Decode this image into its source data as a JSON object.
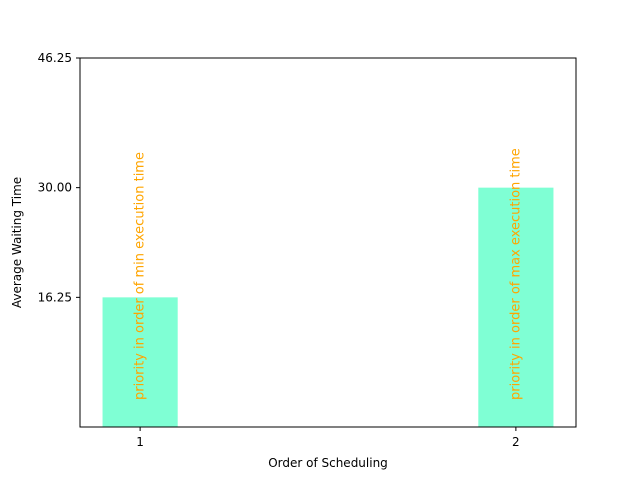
{
  "chart_data": {
    "type": "bar",
    "title": "",
    "xlabel": "Order of Scheduling",
    "ylabel": "Average Waiting Time",
    "categories": [
      "1",
      "2"
    ],
    "x": [
      1,
      2
    ],
    "values": [
      16.25,
      30.0
    ],
    "bar_labels": [
      "priority in order of min execution time",
      "priority in order of max execution time"
    ],
    "yticks": [
      16.25,
      30.0,
      46.25
    ],
    "ytick_labels": [
      "16.25",
      "30.00",
      "46.25"
    ],
    "ylim": [
      0,
      46.25
    ],
    "xlim": [
      0.84,
      2.16
    ],
    "bar_width": 0.2,
    "grid": false,
    "colors": {
      "bar": "#7fffd4",
      "bar_label": "#ffa500",
      "axis": "#000000"
    }
  }
}
